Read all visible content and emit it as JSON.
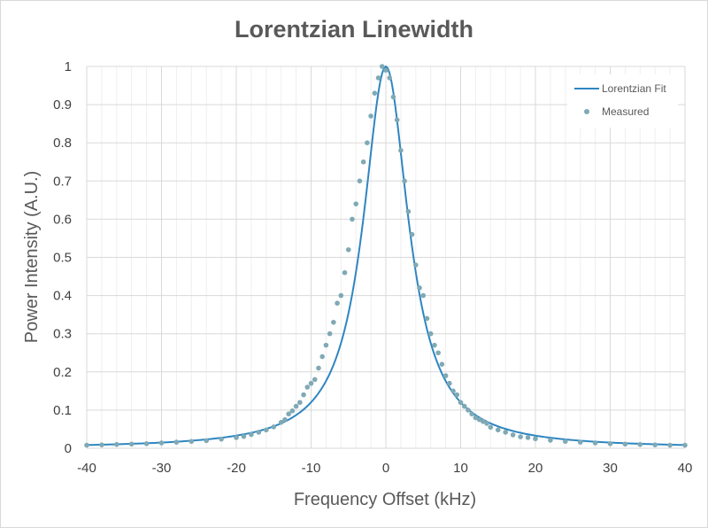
{
  "chart_data": {
    "type": "scatter",
    "title": "Lorentzian Linewidth",
    "xlabel": "Frequency Offset (kHz)",
    "ylabel": "Power Intensity (A.U.)",
    "xlim": [
      -40,
      40
    ],
    "ylim": [
      0,
      1
    ],
    "x_ticks": [
      "-40",
      "-30",
      "-20",
      "-10",
      "0",
      "10",
      "20",
      "30",
      "40"
    ],
    "y_ticks": [
      "0",
      "0.1",
      "0.2",
      "0.3",
      "0.4",
      "0.5",
      "0.6",
      "0.7",
      "0.8",
      "0.9",
      "1"
    ],
    "grid": true,
    "legend_position": "top-right",
    "colors": {
      "fit": "#2e86c1",
      "measured": "#7fa9b5"
    },
    "series": [
      {
        "name": "Lorentzian Fit",
        "type": "line",
        "center": 0,
        "fwhm_khz": 7.4,
        "amplitude": 1,
        "x": [
          -40,
          -36,
          -32,
          -28,
          -24,
          -20,
          -18,
          -16,
          -14,
          -12,
          -10,
          -9,
          -8,
          -7,
          -6,
          -5,
          -4,
          -3,
          -2,
          -1,
          0,
          1,
          2,
          3,
          4,
          5,
          6,
          7,
          8,
          9,
          10,
          12,
          14,
          16,
          18,
          20,
          24,
          28,
          32,
          36,
          40
        ],
        "y": [
          0.008,
          0.01,
          0.013,
          0.017,
          0.023,
          0.033,
          0.041,
          0.051,
          0.065,
          0.087,
          0.12,
          0.145,
          0.176,
          0.218,
          0.276,
          0.354,
          0.461,
          0.603,
          0.774,
          0.932,
          1.0,
          0.932,
          0.774,
          0.603,
          0.461,
          0.354,
          0.276,
          0.218,
          0.176,
          0.145,
          0.12,
          0.087,
          0.065,
          0.051,
          0.041,
          0.033,
          0.023,
          0.017,
          0.013,
          0.01,
          0.008
        ]
      },
      {
        "name": "Measured",
        "type": "scatter",
        "x": [
          -40,
          -38,
          -36,
          -34,
          -32,
          -30,
          -28,
          -26,
          -24,
          -22,
          -20,
          -19,
          -18,
          -17,
          -16,
          -15,
          -14,
          -13.5,
          -13,
          -12.5,
          -12,
          -11.5,
          -11,
          -10.5,
          -10,
          -9.5,
          -9,
          -8.5,
          -8,
          -7.5,
          -7,
          -6.5,
          -6,
          -5.5,
          -5,
          -4.5,
          -4,
          -3.5,
          -3,
          -2.5,
          -2,
          -1.5,
          -1,
          -0.5,
          0,
          0.5,
          1,
          1.5,
          2,
          2.5,
          3,
          3.5,
          4,
          4.5,
          5,
          5.5,
          6,
          6.5,
          7,
          7.5,
          8,
          8.5,
          9,
          9.5,
          10,
          10.5,
          11,
          11.5,
          12,
          12.5,
          13,
          13.5,
          14,
          15,
          16,
          17,
          18,
          19,
          20,
          22,
          24,
          26,
          28,
          30,
          32,
          34,
          36,
          38,
          40
        ],
        "y": [
          0.008,
          0.009,
          0.01,
          0.011,
          0.012,
          0.014,
          0.016,
          0.018,
          0.02,
          0.024,
          0.028,
          0.031,
          0.036,
          0.042,
          0.048,
          0.056,
          0.068,
          0.075,
          0.09,
          0.098,
          0.11,
          0.12,
          0.14,
          0.16,
          0.17,
          0.18,
          0.21,
          0.24,
          0.27,
          0.3,
          0.33,
          0.38,
          0.4,
          0.46,
          0.52,
          0.6,
          0.64,
          0.7,
          0.75,
          0.8,
          0.87,
          0.93,
          0.97,
          1.0,
          0.99,
          0.97,
          0.92,
          0.86,
          0.78,
          0.7,
          0.62,
          0.56,
          0.48,
          0.42,
          0.4,
          0.34,
          0.3,
          0.27,
          0.25,
          0.22,
          0.19,
          0.17,
          0.15,
          0.14,
          0.12,
          0.11,
          0.1,
          0.09,
          0.08,
          0.075,
          0.07,
          0.065,
          0.055,
          0.048,
          0.042,
          0.035,
          0.03,
          0.028,
          0.025,
          0.021,
          0.018,
          0.016,
          0.014,
          0.012,
          0.011,
          0.01,
          0.009,
          0.008,
          0.008
        ]
      }
    ]
  }
}
